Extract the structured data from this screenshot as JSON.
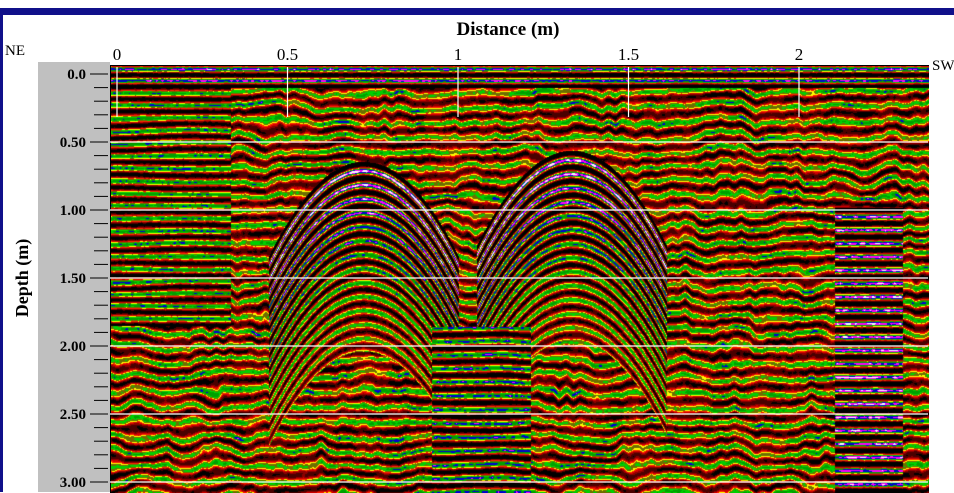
{
  "chart_data": {
    "type": "heatmap",
    "title": "",
    "xlabel": "Distance (m)",
    "ylabel": "Depth (m)",
    "x_ticks": [
      {
        "value": 0,
        "label": "0"
      },
      {
        "value": 0.5,
        "label": "0.5"
      },
      {
        "value": 1,
        "label": "1"
      },
      {
        "value": 1.5,
        "label": "1.5"
      },
      {
        "value": 2,
        "label": "2"
      }
    ],
    "y_ticks": [
      {
        "value": 0.0,
        "label": "0.0"
      },
      {
        "value": 0.5,
        "label": "0.50"
      },
      {
        "value": 1.0,
        "label": "1.00"
      },
      {
        "value": 1.5,
        "label": "1.50"
      },
      {
        "value": 2.0,
        "label": "2.00"
      },
      {
        "value": 2.5,
        "label": "2.50"
      },
      {
        "value": 3.0,
        "label": "3.00"
      }
    ],
    "xlim": [
      0,
      2.38
    ],
    "ylim": [
      0,
      3.05
    ],
    "y_minor_step": 0.1,
    "left_label": "NE",
    "right_label": "SW",
    "grid_y": true,
    "palette": [
      "#000000",
      "#4a0000",
      "#8b0000",
      "#d00000",
      "#ff2000",
      "#ffff00",
      "#6e6e00",
      "#00d000",
      "#00a000",
      "#0000d0",
      "#ff00ff",
      "#ffffff"
    ],
    "hyperbolas": [
      {
        "apex_x": 0.72,
        "apex_depth": 0.78
      },
      {
        "apex_x": 1.33,
        "apex_depth": 0.7
      }
    ],
    "strong_reflector_x": [
      2.1,
      2.3
    ]
  },
  "labels": {
    "title": "Distance (m)",
    "ylabel": "Depth (m)",
    "ne": "NE",
    "sw": "SW"
  }
}
